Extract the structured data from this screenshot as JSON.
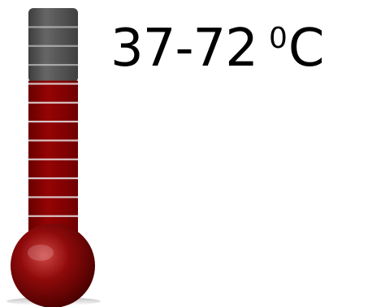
{
  "label": {
    "range": "37-72",
    "degree_symbol": "0",
    "unit": "C"
  },
  "thermometer": {
    "icon": "thermometer-icon",
    "fill_level": 0.68,
    "segments": 12,
    "colors": {
      "empty": "#555555",
      "empty_dark": "#3f3f3f",
      "mercury": "#8a0000",
      "mercury_dark": "#6a0000",
      "bulb_light": "#c23030",
      "bulb_dark": "#5a0000",
      "divider": "#e8e8e8"
    }
  }
}
